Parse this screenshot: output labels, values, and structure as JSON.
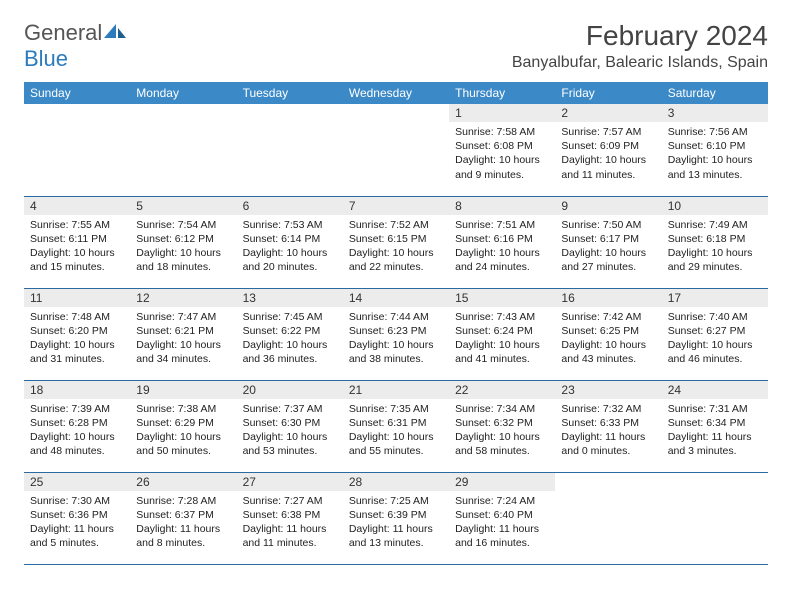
{
  "brand": {
    "part1": "General",
    "part2": "Blue"
  },
  "title": "February 2024",
  "location": "Banyalbufar, Balearic Islands, Spain",
  "colors": {
    "header_bg": "#3b89c7",
    "header_fg": "#ffffff",
    "daynum_bg": "#ececec",
    "rule": "#2b6aa0",
    "brand_blue": "#2b7bbd",
    "text": "#333333"
  },
  "typography": {
    "title_pt": 28,
    "location_pt": 16,
    "header_pt": 12,
    "body_pt": 10.5
  },
  "weekdays": [
    "Sunday",
    "Monday",
    "Tuesday",
    "Wednesday",
    "Thursday",
    "Friday",
    "Saturday"
  ],
  "weeks": [
    [
      null,
      null,
      null,
      null,
      {
        "n": "1",
        "sunrise": "Sunrise: 7:58 AM",
        "sunset": "Sunset: 6:08 PM",
        "daylight": "Daylight: 10 hours and 9 minutes."
      },
      {
        "n": "2",
        "sunrise": "Sunrise: 7:57 AM",
        "sunset": "Sunset: 6:09 PM",
        "daylight": "Daylight: 10 hours and 11 minutes."
      },
      {
        "n": "3",
        "sunrise": "Sunrise: 7:56 AM",
        "sunset": "Sunset: 6:10 PM",
        "daylight": "Daylight: 10 hours and 13 minutes."
      }
    ],
    [
      {
        "n": "4",
        "sunrise": "Sunrise: 7:55 AM",
        "sunset": "Sunset: 6:11 PM",
        "daylight": "Daylight: 10 hours and 15 minutes."
      },
      {
        "n": "5",
        "sunrise": "Sunrise: 7:54 AM",
        "sunset": "Sunset: 6:12 PM",
        "daylight": "Daylight: 10 hours and 18 minutes."
      },
      {
        "n": "6",
        "sunrise": "Sunrise: 7:53 AM",
        "sunset": "Sunset: 6:14 PM",
        "daylight": "Daylight: 10 hours and 20 minutes."
      },
      {
        "n": "7",
        "sunrise": "Sunrise: 7:52 AM",
        "sunset": "Sunset: 6:15 PM",
        "daylight": "Daylight: 10 hours and 22 minutes."
      },
      {
        "n": "8",
        "sunrise": "Sunrise: 7:51 AM",
        "sunset": "Sunset: 6:16 PM",
        "daylight": "Daylight: 10 hours and 24 minutes."
      },
      {
        "n": "9",
        "sunrise": "Sunrise: 7:50 AM",
        "sunset": "Sunset: 6:17 PM",
        "daylight": "Daylight: 10 hours and 27 minutes."
      },
      {
        "n": "10",
        "sunrise": "Sunrise: 7:49 AM",
        "sunset": "Sunset: 6:18 PM",
        "daylight": "Daylight: 10 hours and 29 minutes."
      }
    ],
    [
      {
        "n": "11",
        "sunrise": "Sunrise: 7:48 AM",
        "sunset": "Sunset: 6:20 PM",
        "daylight": "Daylight: 10 hours and 31 minutes."
      },
      {
        "n": "12",
        "sunrise": "Sunrise: 7:47 AM",
        "sunset": "Sunset: 6:21 PM",
        "daylight": "Daylight: 10 hours and 34 minutes."
      },
      {
        "n": "13",
        "sunrise": "Sunrise: 7:45 AM",
        "sunset": "Sunset: 6:22 PM",
        "daylight": "Daylight: 10 hours and 36 minutes."
      },
      {
        "n": "14",
        "sunrise": "Sunrise: 7:44 AM",
        "sunset": "Sunset: 6:23 PM",
        "daylight": "Daylight: 10 hours and 38 minutes."
      },
      {
        "n": "15",
        "sunrise": "Sunrise: 7:43 AM",
        "sunset": "Sunset: 6:24 PM",
        "daylight": "Daylight: 10 hours and 41 minutes."
      },
      {
        "n": "16",
        "sunrise": "Sunrise: 7:42 AM",
        "sunset": "Sunset: 6:25 PM",
        "daylight": "Daylight: 10 hours and 43 minutes."
      },
      {
        "n": "17",
        "sunrise": "Sunrise: 7:40 AM",
        "sunset": "Sunset: 6:27 PM",
        "daylight": "Daylight: 10 hours and 46 minutes."
      }
    ],
    [
      {
        "n": "18",
        "sunrise": "Sunrise: 7:39 AM",
        "sunset": "Sunset: 6:28 PM",
        "daylight": "Daylight: 10 hours and 48 minutes."
      },
      {
        "n": "19",
        "sunrise": "Sunrise: 7:38 AM",
        "sunset": "Sunset: 6:29 PM",
        "daylight": "Daylight: 10 hours and 50 minutes."
      },
      {
        "n": "20",
        "sunrise": "Sunrise: 7:37 AM",
        "sunset": "Sunset: 6:30 PM",
        "daylight": "Daylight: 10 hours and 53 minutes."
      },
      {
        "n": "21",
        "sunrise": "Sunrise: 7:35 AM",
        "sunset": "Sunset: 6:31 PM",
        "daylight": "Daylight: 10 hours and 55 minutes."
      },
      {
        "n": "22",
        "sunrise": "Sunrise: 7:34 AM",
        "sunset": "Sunset: 6:32 PM",
        "daylight": "Daylight: 10 hours and 58 minutes."
      },
      {
        "n": "23",
        "sunrise": "Sunrise: 7:32 AM",
        "sunset": "Sunset: 6:33 PM",
        "daylight": "Daylight: 11 hours and 0 minutes."
      },
      {
        "n": "24",
        "sunrise": "Sunrise: 7:31 AM",
        "sunset": "Sunset: 6:34 PM",
        "daylight": "Daylight: 11 hours and 3 minutes."
      }
    ],
    [
      {
        "n": "25",
        "sunrise": "Sunrise: 7:30 AM",
        "sunset": "Sunset: 6:36 PM",
        "daylight": "Daylight: 11 hours and 5 minutes."
      },
      {
        "n": "26",
        "sunrise": "Sunrise: 7:28 AM",
        "sunset": "Sunset: 6:37 PM",
        "daylight": "Daylight: 11 hours and 8 minutes."
      },
      {
        "n": "27",
        "sunrise": "Sunrise: 7:27 AM",
        "sunset": "Sunset: 6:38 PM",
        "daylight": "Daylight: 11 hours and 11 minutes."
      },
      {
        "n": "28",
        "sunrise": "Sunrise: 7:25 AM",
        "sunset": "Sunset: 6:39 PM",
        "daylight": "Daylight: 11 hours and 13 minutes."
      },
      {
        "n": "29",
        "sunrise": "Sunrise: 7:24 AM",
        "sunset": "Sunset: 6:40 PM",
        "daylight": "Daylight: 11 hours and 16 minutes."
      },
      null,
      null
    ]
  ]
}
